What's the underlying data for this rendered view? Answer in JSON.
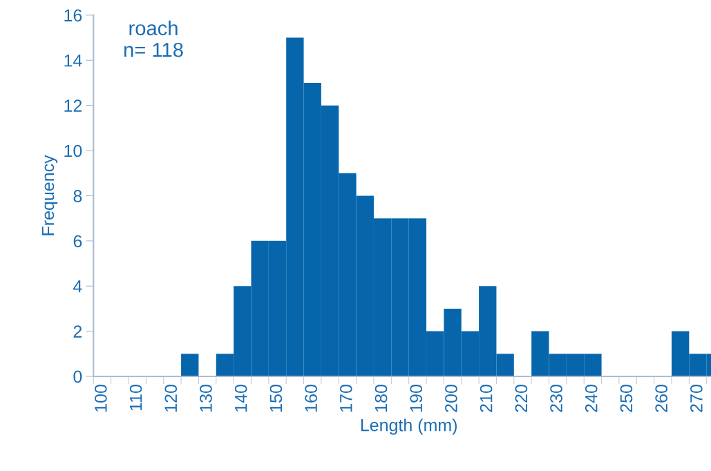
{
  "chart_data": {
    "type": "bar",
    "xlabel": "Length (mm)",
    "ylabel": "Frequency",
    "annotations": [
      "roach\nn= 118"
    ],
    "categories": [
      "100",
      null,
      "110",
      null,
      "120",
      null,
      "130",
      null,
      "140",
      null,
      "150",
      null,
      "160",
      null,
      "170",
      null,
      "180",
      null,
      "190",
      null,
      "200",
      null,
      "210",
      null,
      "220",
      null,
      "230",
      null,
      "240",
      null,
      "250",
      null,
      "260",
      null,
      "270",
      null
    ],
    "values": [
      0,
      0,
      0,
      0,
      0,
      1,
      0,
      1,
      4,
      6,
      6,
      15,
      13,
      12,
      9,
      8,
      7,
      7,
      7,
      2,
      3,
      2,
      4,
      1,
      0,
      2,
      1,
      1,
      1,
      0,
      0,
      0,
      0,
      2,
      1,
      1
    ],
    "color": "#0766ab",
    "ylim": [
      0,
      16
    ],
    "yticks": [
      0,
      2,
      4,
      6,
      8,
      10,
      12,
      14,
      16
    ],
    "grid": false,
    "legend": false
  }
}
